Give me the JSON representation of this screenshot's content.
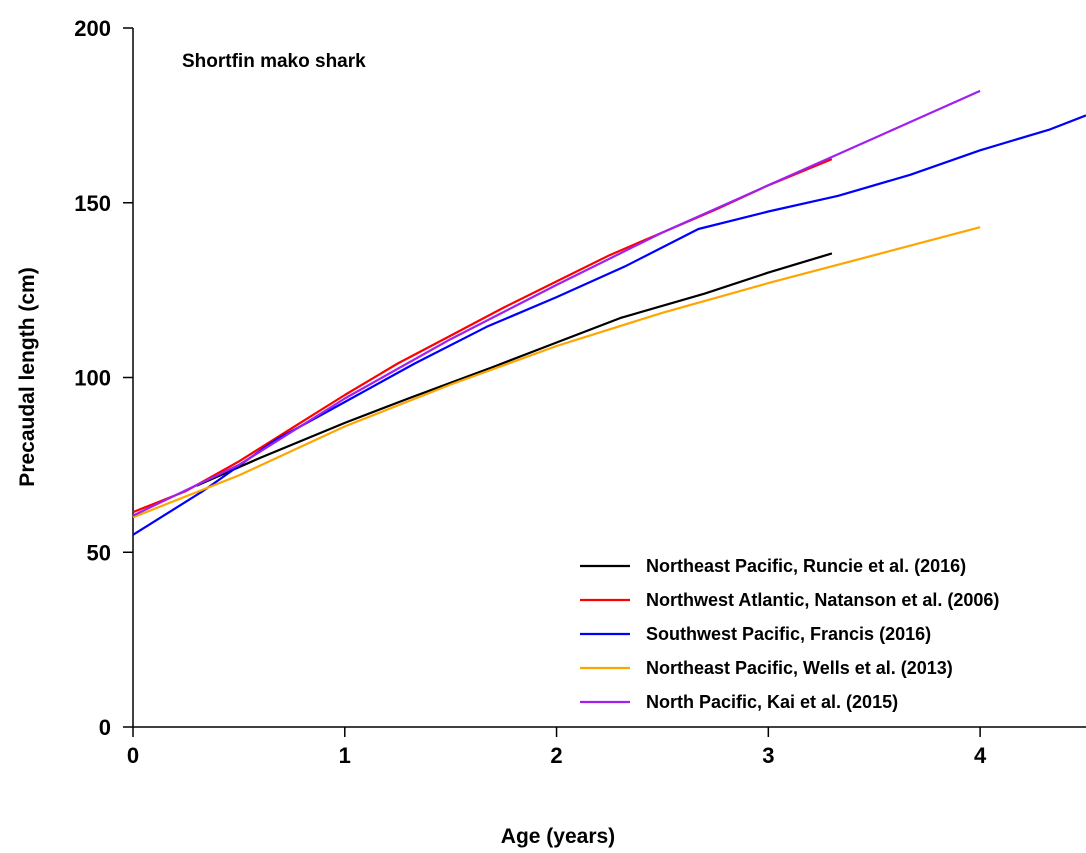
{
  "chart_data": {
    "type": "line",
    "title": "Shortfin mako shark",
    "xlabel": "Age (years)",
    "ylabel": "Precaudal length (cm)",
    "xlim": [
      0,
      4.5
    ],
    "ylim": [
      0,
      200
    ],
    "xticks": [
      0,
      1,
      2,
      3,
      4
    ],
    "yticks": [
      0,
      50,
      100,
      150,
      200
    ],
    "legend_position": "bottom-right",
    "series": [
      {
        "name": "Northeast Pacific, Runcie et al. (2016)",
        "color": "#000000",
        "x": [
          0.3,
          0.6,
          1.0,
          1.3,
          1.7,
          2.0,
          2.3,
          2.7,
          3.0,
          3.3
        ],
        "y": [
          69,
          77,
          87,
          94,
          103,
          110,
          117,
          124,
          130,
          135.5
        ]
      },
      {
        "name": "Northwest Atlantic, Natanson et al. (2006)",
        "color": "#ff0000",
        "x": [
          0,
          0.25,
          0.5,
          0.75,
          1.0,
          1.25,
          1.5,
          1.75,
          2.0,
          2.25,
          2.5,
          2.75,
          3.0,
          3.3
        ],
        "y": [
          61.5,
          67.5,
          76,
          85.5,
          95,
          104,
          112,
          120,
          127.5,
          135,
          141.5,
          148,
          155,
          162.5
        ]
      },
      {
        "name": "Southwest Pacific, Francis (2016)",
        "color": "#0000ff",
        "x": [
          0,
          0.33,
          0.67,
          1.0,
          1.33,
          1.67,
          2.0,
          2.33,
          2.67,
          3.0,
          3.33,
          3.67,
          4.0,
          4.33,
          4.5
        ],
        "y": [
          55,
          67.5,
          82,
          93,
          104,
          114.5,
          123,
          132,
          142.5,
          147.5,
          152,
          158,
          165,
          171,
          175
        ]
      },
      {
        "name": "Northeast Pacific, Wells et al. (2013)",
        "color": "#ffa500",
        "x": [
          0,
          0.5,
          1.0,
          1.5,
          2.0,
          2.5,
          3.0,
          3.5,
          4.0
        ],
        "y": [
          60,
          72,
          86,
          98,
          109,
          118.5,
          127,
          135,
          143
        ]
      },
      {
        "name": "North Pacific, Kai et al. (2015)",
        "color": "#a020f0",
        "x": [
          0,
          0.5,
          1.0,
          1.5,
          2.0,
          2.5,
          3.0,
          3.5,
          4.0
        ],
        "y": [
          60.5,
          75,
          94,
          111,
          126.5,
          141.5,
          155,
          168.5,
          182
        ]
      }
    ]
  }
}
